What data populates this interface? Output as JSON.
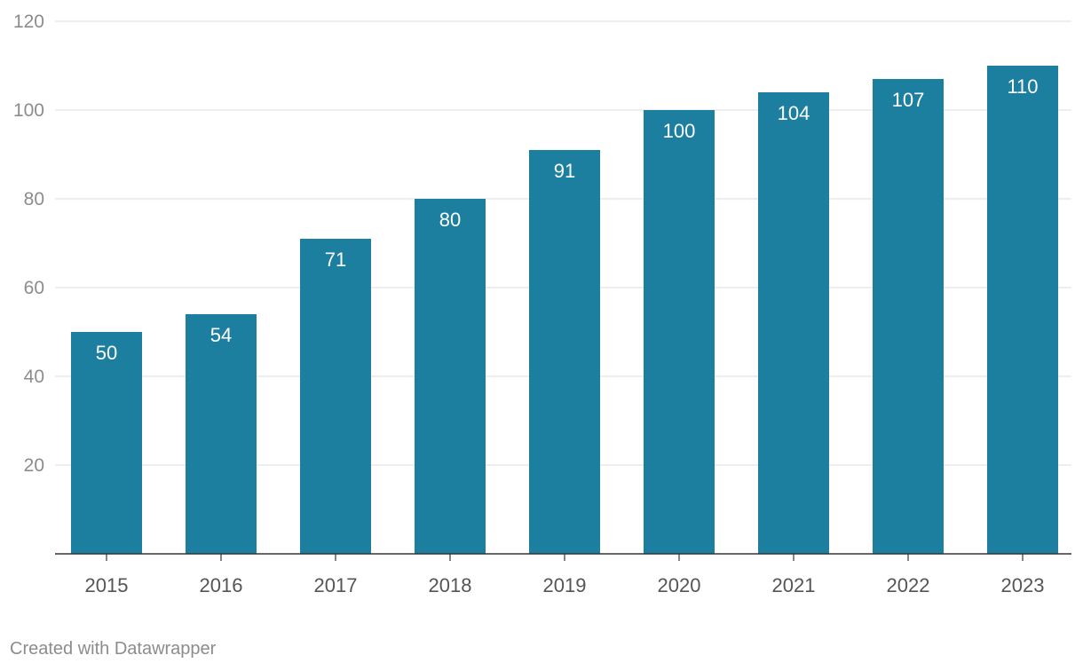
{
  "chart_data": {
    "type": "bar",
    "title": "",
    "xlabel": "",
    "ylabel": "",
    "categories": [
      "2015",
      "2016",
      "2017",
      "2018",
      "2019",
      "2020",
      "2021",
      "2022",
      "2023"
    ],
    "values": [
      50,
      54,
      71,
      80,
      91,
      100,
      104,
      107,
      110
    ],
    "value_labels": [
      "50",
      "54",
      "71",
      "80",
      "91",
      "100",
      "104",
      "107",
      "110"
    ],
    "ylim": [
      0,
      120
    ],
    "yticks": [
      20,
      40,
      60,
      80,
      100,
      120
    ],
    "ytick_labels": [
      "20",
      "40",
      "60",
      "80",
      "100",
      "120"
    ],
    "grid": true,
    "legend": "none",
    "bar_color": "#1d7fa0",
    "data_label_color": "#ffffff",
    "axis_label_color": "#8c8c8c",
    "category_label_color": "#555555",
    "gridline_color": "#e3e3e3",
    "baseline_color": "#333333"
  },
  "footer": {
    "credit": "Created with Datawrapper"
  }
}
